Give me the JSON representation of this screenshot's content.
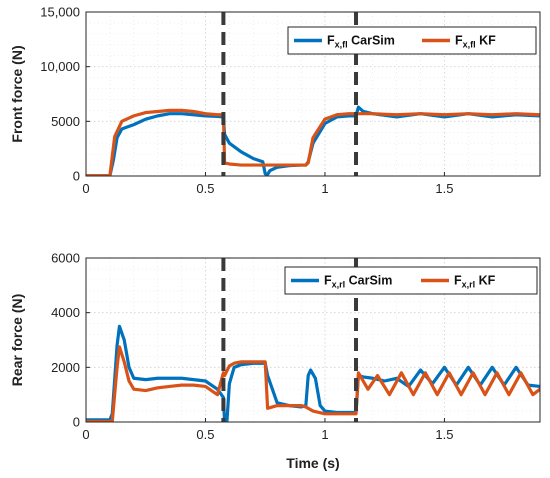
{
  "chart_data": [
    {
      "type": "line",
      "ylabel": "Front force (N)",
      "xlabel": "",
      "xlim": [
        0,
        1.9
      ],
      "ylim": [
        0,
        15000
      ],
      "x_ticks": [
        0,
        0.5,
        1,
        1.5
      ],
      "x_tick_labels": [
        "0",
        "0.5",
        "1",
        "1.5"
      ],
      "y_ticks": [
        0,
        5000,
        10000,
        15000
      ],
      "y_tick_labels": [
        "0",
        "5000",
        "10,000",
        "15,000"
      ],
      "grid": true,
      "legend_position": "top-right",
      "vlines": [
        0.575,
        1.13
      ],
      "series": [
        {
          "name": "F",
          "sub": "x,fl",
          "suffix": " CarSim",
          "color": "#0072BD",
          "x": [
            0,
            0.1,
            0.115,
            0.13,
            0.15,
            0.2,
            0.25,
            0.3,
            0.35,
            0.4,
            0.45,
            0.5,
            0.55,
            0.575,
            0.58,
            0.6,
            0.65,
            0.7,
            0.74,
            0.75,
            0.76,
            0.77,
            0.8,
            0.85,
            0.9,
            0.92,
            0.93,
            0.95,
            1.0,
            1.05,
            1.1,
            1.13,
            1.14,
            1.16,
            1.2,
            1.3,
            1.4,
            1.5,
            1.6,
            1.7,
            1.8,
            1.9
          ],
          "y": [
            30,
            30,
            1500,
            3500,
            4300,
            4700,
            5200,
            5500,
            5700,
            5700,
            5600,
            5500,
            5450,
            5400,
            3800,
            3000,
            2200,
            1600,
            1300,
            200,
            150,
            500,
            800,
            950,
            1000,
            1000,
            1300,
            3000,
            4800,
            5400,
            5500,
            5500,
            6300,
            5900,
            5700,
            5400,
            5700,
            5400,
            5700,
            5400,
            5600,
            5500
          ]
        },
        {
          "name": "F",
          "sub": "x,fl",
          "suffix": " KF",
          "color": "#D95319",
          "x": [
            0,
            0.1,
            0.12,
            0.15,
            0.2,
            0.25,
            0.3,
            0.35,
            0.4,
            0.45,
            0.5,
            0.55,
            0.575,
            0.58,
            0.6,
            0.65,
            0.7,
            0.75,
            0.8,
            0.85,
            0.9,
            0.92,
            0.93,
            0.95,
            1.0,
            1.05,
            1.1,
            1.13,
            1.2,
            1.3,
            1.4,
            1.5,
            1.6,
            1.7,
            1.8,
            1.9
          ],
          "y": [
            30,
            30,
            3600,
            5000,
            5500,
            5800,
            5900,
            6000,
            6000,
            5900,
            5700,
            5600,
            5600,
            1200,
            1100,
            1000,
            1000,
            1000,
            1000,
            1000,
            1000,
            1000,
            1200,
            3500,
            5200,
            5600,
            5700,
            5700,
            5700,
            5600,
            5700,
            5600,
            5700,
            5600,
            5700,
            5600
          ]
        }
      ]
    },
    {
      "type": "line",
      "ylabel": "Rear force (N)",
      "xlabel": "Time (s)",
      "xlim": [
        0,
        1.9
      ],
      "ylim": [
        0,
        6000
      ],
      "x_ticks": [
        0,
        0.5,
        1,
        1.5
      ],
      "x_tick_labels": [
        "0",
        "0.5",
        "1",
        "1.5"
      ],
      "y_ticks": [
        0,
        2000,
        4000,
        6000
      ],
      "y_tick_labels": [
        "0",
        "2000",
        "4000",
        "6000"
      ],
      "grid": true,
      "legend_position": "top-right",
      "vlines": [
        0.575,
        1.13
      ],
      "series": [
        {
          "name": "F",
          "sub": "x,rl",
          "suffix": " CarSim",
          "color": "#0072BD",
          "x": [
            0,
            0.1,
            0.11,
            0.13,
            0.14,
            0.16,
            0.18,
            0.2,
            0.25,
            0.3,
            0.35,
            0.4,
            0.45,
            0.5,
            0.55,
            0.575,
            0.58,
            0.59,
            0.6,
            0.62,
            0.65,
            0.7,
            0.75,
            0.76,
            0.8,
            0.85,
            0.9,
            0.92,
            0.93,
            0.94,
            0.96,
            0.98,
            1.0,
            1.05,
            1.1,
            1.13,
            1.14,
            1.16,
            1.2,
            1.25,
            1.3,
            1.35,
            1.4,
            1.45,
            1.5,
            1.55,
            1.6,
            1.65,
            1.7,
            1.75,
            1.8,
            1.85,
            1.9
          ],
          "y": [
            80,
            80,
            300,
            2800,
            3500,
            3000,
            2000,
            1600,
            1550,
            1600,
            1600,
            1600,
            1550,
            1500,
            1200,
            900,
            0,
            50,
            1400,
            2000,
            2100,
            2150,
            2150,
            1700,
            700,
            600,
            550,
            600,
            1700,
            1900,
            1600,
            600,
            400,
            350,
            350,
            350,
            1700,
            1650,
            1600,
            1500,
            1600,
            1300,
            1900,
            1400,
            2000,
            1350,
            2000,
            1350,
            2000,
            1350,
            2000,
            1350,
            1300
          ]
        },
        {
          "name": "F",
          "sub": "x,rl",
          "suffix": " KF",
          "color": "#D95319",
          "x": [
            0,
            0.11,
            0.13,
            0.14,
            0.16,
            0.18,
            0.2,
            0.25,
            0.3,
            0.35,
            0.4,
            0.45,
            0.5,
            0.55,
            0.575,
            0.58,
            0.6,
            0.62,
            0.65,
            0.7,
            0.75,
            0.76,
            0.8,
            0.85,
            0.9,
            0.92,
            0.95,
            1.0,
            1.05,
            1.1,
            1.13,
            1.14,
            1.18,
            1.22,
            1.27,
            1.32,
            1.37,
            1.42,
            1.47,
            1.52,
            1.57,
            1.62,
            1.67,
            1.72,
            1.77,
            1.82,
            1.87,
            1.9
          ],
          "y": [
            20,
            20,
            2000,
            2750,
            2200,
            1500,
            1200,
            1150,
            1250,
            1300,
            1350,
            1350,
            1300,
            1000,
            1800,
            1700,
            2050,
            2150,
            2200,
            2200,
            2200,
            500,
            600,
            600,
            600,
            550,
            400,
            300,
            300,
            300,
            300,
            1800,
            1200,
            1700,
            1000,
            1800,
            1000,
            1800,
            1000,
            1800,
            1000,
            1800,
            1000,
            1800,
            1000,
            1800,
            1000,
            1200
          ]
        }
      ]
    }
  ]
}
